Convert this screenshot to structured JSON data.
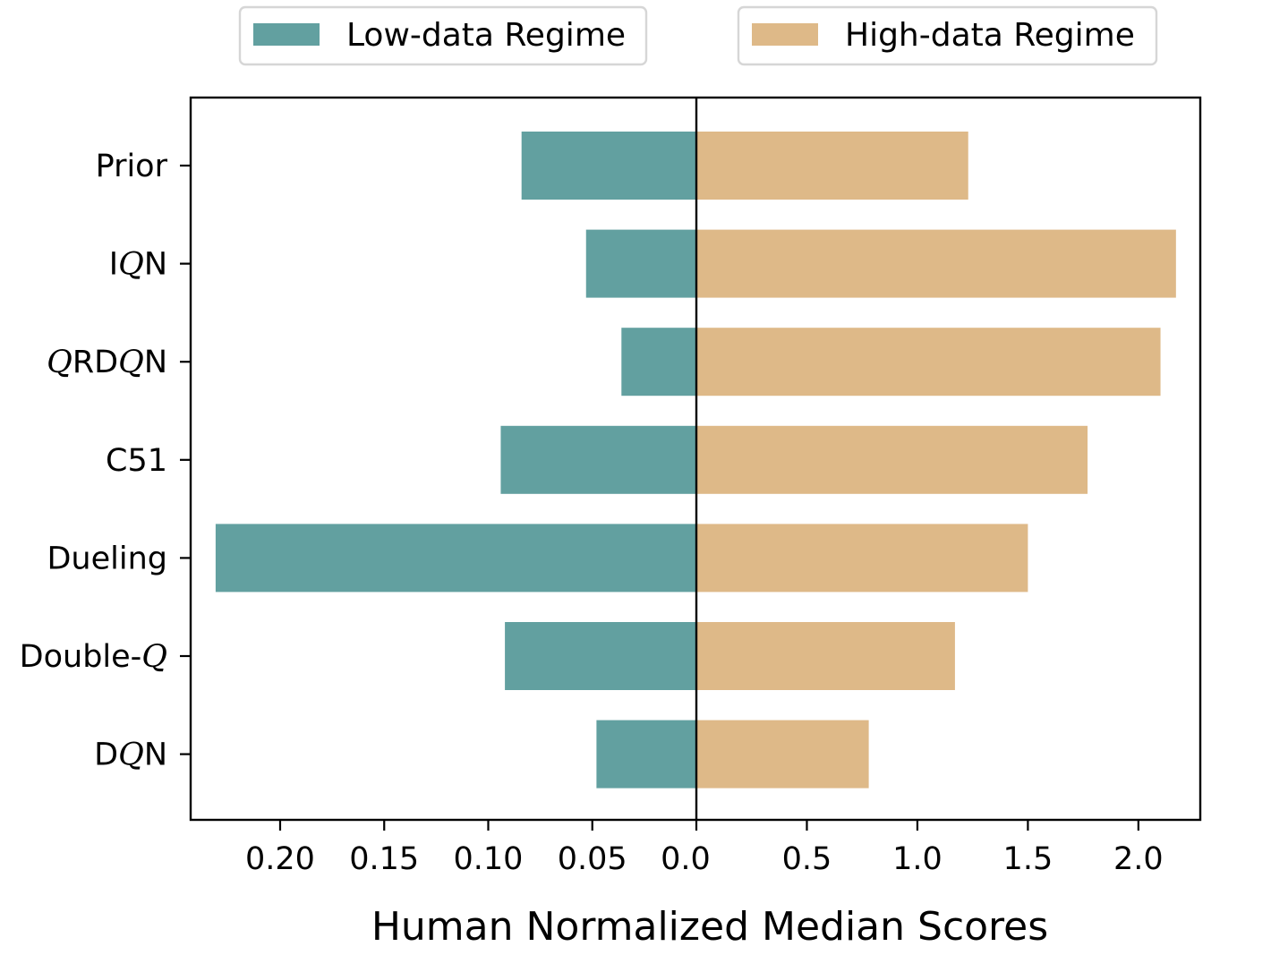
{
  "chart_data": {
    "type": "bar",
    "orientation": "horizontal-diverging",
    "categories": [
      "Prior",
      "IQN",
      "QRDQN",
      "C51",
      "Dueling",
      "Double-Q",
      "DQN"
    ],
    "category_labels": [
      [
        {
          "t": "Prior"
        }
      ],
      [
        {
          "t": "I"
        },
        {
          "t": "Q",
          "script": true
        },
        {
          "t": "N"
        }
      ],
      [
        {
          "t": "Q",
          "script": true
        },
        {
          "t": "RD"
        },
        {
          "t": "Q",
          "script": true
        },
        {
          "t": "N"
        }
      ],
      [
        {
          "t": "C51"
        }
      ],
      [
        {
          "t": "Dueling"
        }
      ],
      [
        {
          "t": "Double-"
        },
        {
          "t": "Q",
          "script": true
        }
      ],
      [
        {
          "t": "D"
        },
        {
          "t": "Q",
          "script": true
        },
        {
          "t": "N"
        }
      ]
    ],
    "series": [
      {
        "name": "Low-data Regime",
        "color": "#62a0a0",
        "side": "left",
        "values": [
          0.084,
          0.053,
          0.036,
          0.094,
          0.231,
          0.092,
          0.048
        ]
      },
      {
        "name": "High-data Regime",
        "color": "#deb988",
        "side": "right",
        "values": [
          1.23,
          2.17,
          2.1,
          1.77,
          1.5,
          1.17,
          0.78
        ]
      }
    ],
    "left_axis": {
      "range": [
        0.243,
        0
      ],
      "ticks": [
        0.2,
        0.15,
        0.1,
        0.05,
        0.0
      ],
      "tick_labels": [
        "0.20",
        "0.15",
        "0.10",
        "0.05",
        "0.0"
      ]
    },
    "right_axis": {
      "range": [
        0,
        2.28
      ],
      "ticks": [
        0.5,
        1.0,
        1.5,
        2.0
      ],
      "tick_labels": [
        "0.5",
        "1.0",
        "1.5",
        "2.0"
      ]
    },
    "xlabel": "Human Normalized Median Scores",
    "ylabel": "",
    "title": "",
    "grid": false,
    "legend_placement": "top"
  }
}
